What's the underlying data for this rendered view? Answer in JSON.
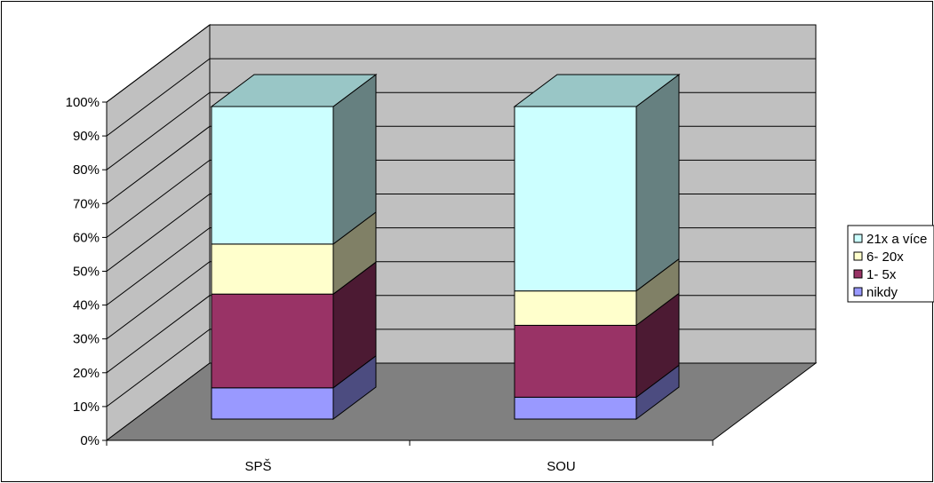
{
  "chart_data": {
    "type": "bar",
    "stacked": true,
    "percent_stacked": true,
    "three_d": true,
    "categories": [
      "SPŠ",
      "SOU"
    ],
    "series": [
      {
        "name": "nikdy",
        "values": [
          10,
          7
        ],
        "color": "#9999FF",
        "side_color": "#4C4C80"
      },
      {
        "name": "1- 5x",
        "values": [
          30,
          23
        ],
        "color": "#993366",
        "side_color": "#4C1A33"
      },
      {
        "name": "6- 20x",
        "values": [
          16,
          11
        ],
        "color": "#FFFFCC",
        "side_color": "#808066"
      },
      {
        "name": "21x a více",
        "values": [
          44,
          59
        ],
        "color": "#CCFFFF",
        "side_color": "#668080",
        "top_color": "#99C6C6"
      }
    ],
    "y_ticks": [
      "0%",
      "10%",
      "20%",
      "30%",
      "40%",
      "50%",
      "60%",
      "70%",
      "80%",
      "90%",
      "100%"
    ],
    "ylim": [
      0,
      100
    ],
    "grid": true,
    "legend_position": "right",
    "colors": {
      "wall": "#C0C0C0",
      "floor": "#808080",
      "gridline": "#000000",
      "border": "#000000"
    }
  }
}
